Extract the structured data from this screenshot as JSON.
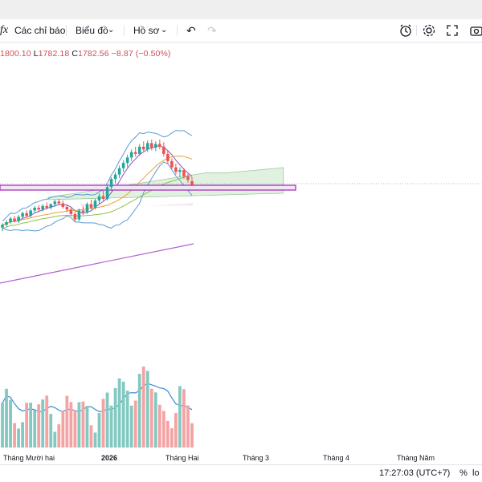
{
  "toolbar": {
    "indicators_label": "Các chỉ báo",
    "chart_type_label": "Biểu đồ",
    "profile_label": "Hồ sơ"
  },
  "legend": {
    "high": "1800.10",
    "low_prefix": "L",
    "low": "1782.18",
    "close_prefix": "C",
    "close": "1782.56",
    "change": "−8.87 (−0.50%)"
  },
  "x_axis": {
    "labels": [
      "Tháng Mười hai",
      "2026",
      "Tháng Hai",
      "Tháng 3",
      "Tháng 4",
      "Tháng Năm"
    ]
  },
  "status_bar": {
    "time": "17:27:03 (UTC+7)",
    "percent_label": "%",
    "log_label": "lo"
  },
  "colors": {
    "up": "#26a69a",
    "down": "#ef5350",
    "up_volume": "#84c9c1",
    "down_volume": "#f4a3a3",
    "ichimoku_cloud": "#a5d6a7",
    "long_ma": "#b15fd0",
    "horizontal_zone": "#9c27b0"
  },
  "chart_data": {
    "type": "candlestick",
    "title": "",
    "candles": [
      [
        1688,
        1698,
        1680,
        1694
      ],
      [
        1694,
        1705,
        1690,
        1700
      ],
      [
        1700,
        1712,
        1696,
        1708
      ],
      [
        1708,
        1714,
        1700,
        1702
      ],
      [
        1702,
        1716,
        1698,
        1712
      ],
      [
        1712,
        1724,
        1708,
        1720
      ],
      [
        1720,
        1726,
        1710,
        1714
      ],
      [
        1714,
        1730,
        1710,
        1726
      ],
      [
        1726,
        1736,
        1720,
        1732
      ],
      [
        1732,
        1738,
        1722,
        1728
      ],
      [
        1728,
        1740,
        1724,
        1736
      ],
      [
        1736,
        1744,
        1728,
        1732
      ],
      [
        1732,
        1742,
        1728,
        1740
      ],
      [
        1740,
        1750,
        1734,
        1746
      ],
      [
        1746,
        1752,
        1738,
        1742
      ],
      [
        1742,
        1748,
        1730,
        1734
      ],
      [
        1734,
        1740,
        1722,
        1728
      ],
      [
        1728,
        1732,
        1714,
        1718
      ],
      [
        1718,
        1724,
        1700,
        1706
      ],
      [
        1706,
        1730,
        1702,
        1726
      ],
      [
        1726,
        1736,
        1716,
        1722
      ],
      [
        1722,
        1744,
        1718,
        1740
      ],
      [
        1740,
        1750,
        1728,
        1732
      ],
      [
        1732,
        1752,
        1728,
        1748
      ],
      [
        1748,
        1764,
        1740,
        1758
      ],
      [
        1758,
        1770,
        1748,
        1752
      ],
      [
        1752,
        1782,
        1748,
        1778
      ],
      [
        1778,
        1800,
        1770,
        1796
      ],
      [
        1796,
        1812,
        1786,
        1806
      ],
      [
        1806,
        1826,
        1798,
        1820
      ],
      [
        1820,
        1838,
        1812,
        1832
      ],
      [
        1832,
        1850,
        1822,
        1844
      ],
      [
        1844,
        1862,
        1836,
        1856
      ],
      [
        1856,
        1868,
        1846,
        1852
      ],
      [
        1852,
        1874,
        1848,
        1868
      ],
      [
        1868,
        1880,
        1858,
        1862
      ],
      [
        1862,
        1882,
        1856,
        1876
      ],
      [
        1876,
        1884,
        1860,
        1866
      ],
      [
        1866,
        1880,
        1858,
        1874
      ],
      [
        1874,
        1884,
        1862,
        1868
      ],
      [
        1868,
        1878,
        1846,
        1852
      ],
      [
        1852,
        1860,
        1830,
        1836
      ],
      [
        1836,
        1842,
        1818,
        1822
      ],
      [
        1822,
        1830,
        1806,
        1812
      ],
      [
        1812,
        1822,
        1800,
        1816
      ],
      [
        1816,
        1820,
        1796,
        1802
      ],
      [
        1802,
        1808,
        1788,
        1794
      ],
      [
        1791,
        1800,
        1782,
        1783
      ]
    ],
    "volume_up_down": "bars colored by candle direction"
  }
}
